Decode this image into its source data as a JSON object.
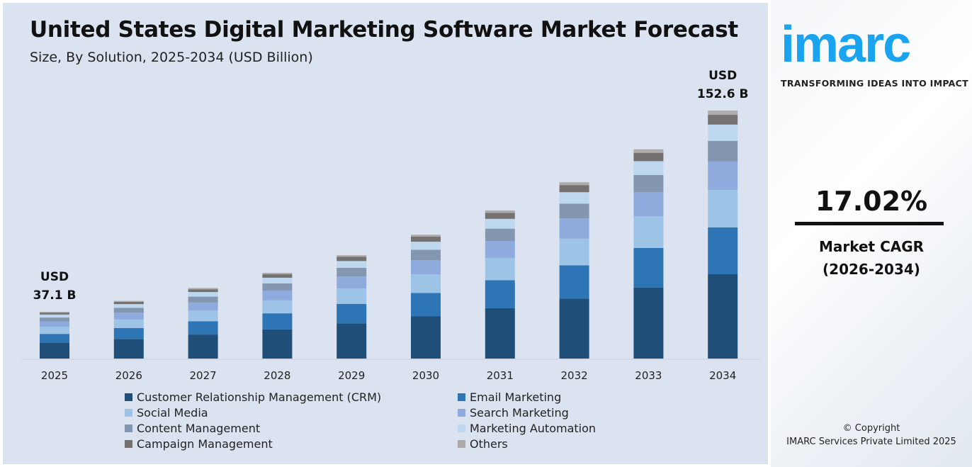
{
  "chart_data": {
    "type": "bar",
    "stacked": true,
    "title": "United States Digital Marketing Software Market Forecast",
    "subtitle": "Size, By Solution, 2025-2034 (USD Billion)",
    "categories": [
      "2025",
      "2026",
      "2027",
      "2028",
      "2029",
      "2030",
      "2031",
      "2032",
      "2033",
      "2034"
    ],
    "totals": [
      37.1,
      43.4,
      50.8,
      59.5,
      69.6,
      81.4,
      95.3,
      111.5,
      130.4,
      152.6
    ],
    "annotations": [
      {
        "category": "2025",
        "line1": "USD",
        "line2": "37.1 B"
      },
      {
        "category": "2034",
        "line1": "USD",
        "line2": "152.6 B"
      }
    ],
    "series": [
      {
        "name": "Customer Relationship Management (CRM)",
        "color": "#1f4e79",
        "values": [
          12.6,
          14.8,
          17.3,
          20.2,
          23.7,
          27.7,
          32.4,
          37.9,
          44.3,
          51.9
        ]
      },
      {
        "name": "Email Marketing",
        "color": "#2e75b6",
        "values": [
          7.0,
          8.2,
          9.6,
          11.2,
          13.1,
          15.4,
          18.0,
          21.1,
          24.6,
          28.8
        ]
      },
      {
        "name": "Social Media",
        "color": "#9dc3e6",
        "values": [
          5.6,
          6.6,
          7.7,
          9.0,
          10.5,
          12.3,
          14.4,
          16.8,
          19.7,
          23.1
        ]
      },
      {
        "name": "Search Marketing",
        "color": "#8faadc",
        "values": [
          4.3,
          5.0,
          5.8,
          6.8,
          8.0,
          9.3,
          10.9,
          12.8,
          15.0,
          17.5
        ]
      },
      {
        "name": "Content Management",
        "color": "#8497b0",
        "values": [
          3.1,
          3.6,
          4.2,
          5.0,
          5.8,
          6.8,
          7.9,
          9.3,
          10.8,
          12.7
        ]
      },
      {
        "name": "Marketing Automation",
        "color": "#bdd7ee",
        "values": [
          2.4,
          2.8,
          3.3,
          3.9,
          4.6,
          5.3,
          6.3,
          7.3,
          8.6,
          10.0
        ]
      },
      {
        "name": "Campaign Management",
        "color": "#767171",
        "values": [
          1.5,
          1.7,
          2.0,
          2.4,
          2.8,
          3.3,
          3.8,
          4.5,
          5.2,
          6.0
        ]
      },
      {
        "name": "Others",
        "color": "#aeaaaa",
        "values": [
          0.6,
          0.7,
          0.9,
          1.0,
          1.1,
          1.3,
          1.6,
          1.8,
          2.2,
          2.6
        ]
      }
    ],
    "legend_position": "bottom",
    "grid": false
  },
  "side": {
    "logo": "imarc",
    "tagline": "TRANSFORMING IDEAS INTO IMPACT",
    "cagr_value": "17.02%",
    "cagr_label": "Market CAGR",
    "cagr_period": "(2026-2034)",
    "copyright": "© Copyright",
    "company": "IMARC Services Private Limited 2025"
  }
}
